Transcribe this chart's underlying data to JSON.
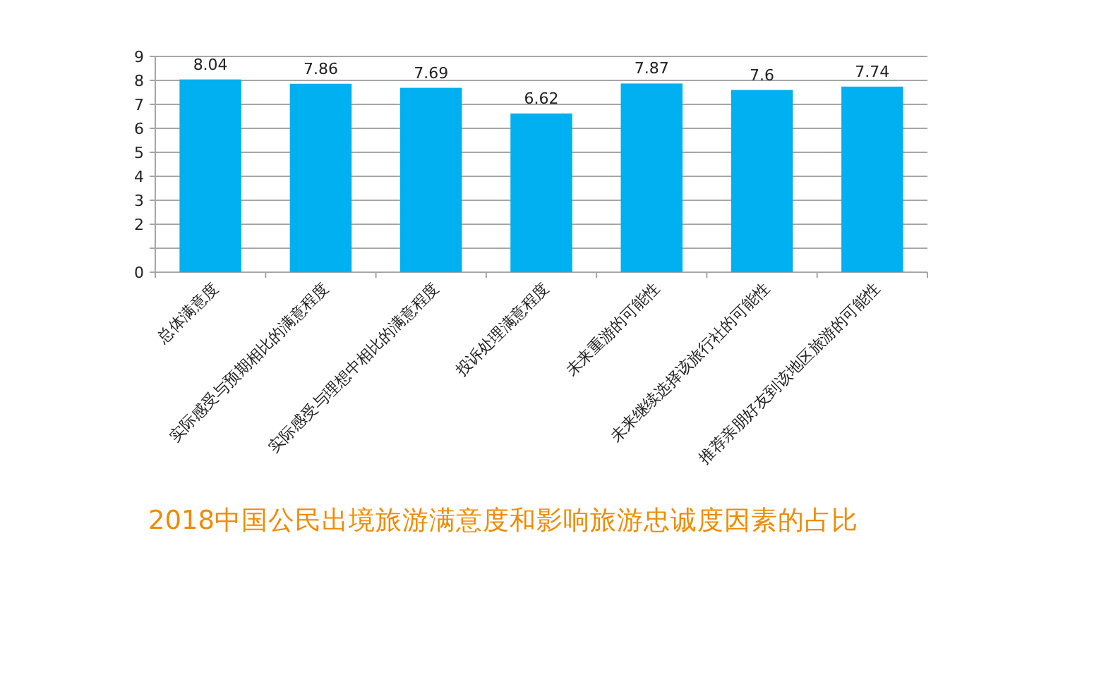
{
  "chart_data": {
    "type": "bar",
    "title": "2018中国公民出境旅游满意度和影响旅游忠诚度因素的占比",
    "categories": [
      "总体满意度",
      "实际感受与预期相比的满意程度",
      "实际感受与理想中相比的满意程度",
      "投诉处理满意程度",
      "未来重游的可能性",
      "未来继续选择该旅行社的可能性",
      "推荐亲朋好友到该地区旅游的可能性"
    ],
    "values": [
      8.04,
      7.86,
      7.69,
      6.62,
      7.87,
      7.6,
      7.74
    ],
    "color": "#00b0f0",
    "ylim": [
      0,
      9
    ],
    "yticks": [
      0,
      {
        "value": 1,
        "label": null
      },
      2,
      3,
      4,
      5,
      6,
      7,
      8,
      9
    ],
    "grid": "y",
    "data_labels": true
  }
}
